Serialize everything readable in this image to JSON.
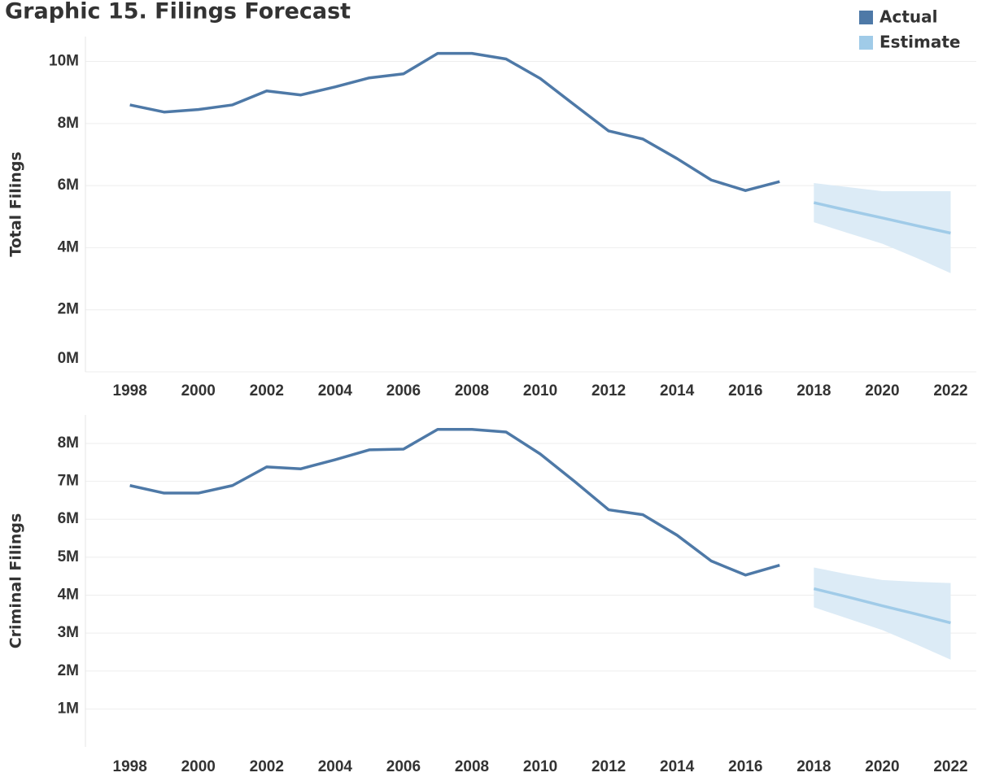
{
  "chart_data": [
    {
      "type": "line",
      "title": "Graphic 15. Filings Forecast",
      "y_label": "Total Filings",
      "xlim": [
        1996.7,
        2022.75
      ],
      "xticks": [
        1998,
        2000,
        2002,
        2004,
        2006,
        2008,
        2010,
        2012,
        2014,
        2016,
        2018,
        2020,
        2022
      ],
      "ylim": [
        0,
        10800000
      ],
      "yticks": [
        {
          "value": 0,
          "label": "0M"
        },
        {
          "value": 2000000,
          "label": "2M"
        },
        {
          "value": 4000000,
          "label": "4M"
        },
        {
          "value": 6000000,
          "label": "6M"
        },
        {
          "value": 8000000,
          "label": "8M"
        },
        {
          "value": 10000000,
          "label": "10M"
        }
      ],
      "grid": true,
      "legend": "top-right",
      "series": [
        {
          "name": "Actual",
          "color": "#4e79a7",
          "x": [
            1998,
            1999,
            2000,
            2001,
            2002,
            2003,
            2004,
            2005,
            2006,
            2007,
            2008,
            2009,
            2010,
            2011,
            2012,
            2013,
            2014,
            2015,
            2016,
            2017
          ],
          "values": [
            8600000,
            8370000,
            8450000,
            8600000,
            9050000,
            8920000,
            9180000,
            9470000,
            9600000,
            10260000,
            10260000,
            10080000,
            9450000,
            8600000,
            7760000,
            7500000,
            6870000,
            6180000,
            5840000,
            6130000
          ]
        },
        {
          "name": "Estimate",
          "color": "#a0cbe8",
          "band_color": "#dcebf6",
          "x": [
            2018,
            2019,
            2020,
            2021,
            2022
          ],
          "values": [
            5450000,
            5200000,
            4960000,
            4710000,
            4470000
          ],
          "upper": [
            6080000,
            5950000,
            5820000,
            5820000,
            5820000
          ],
          "lower": [
            4820000,
            4470000,
            4130000,
            3670000,
            3180000
          ]
        }
      ]
    },
    {
      "type": "line",
      "y_label": "Criminal Filings",
      "xlim": [
        1996.7,
        2022.75
      ],
      "xticks": [
        1998,
        2000,
        2002,
        2004,
        2006,
        2008,
        2010,
        2012,
        2014,
        2016,
        2018,
        2020,
        2022
      ],
      "ylim": [
        0,
        8750000
      ],
      "yticks": [
        {
          "value": 1000000,
          "label": "1M"
        },
        {
          "value": 2000000,
          "label": "2M"
        },
        {
          "value": 3000000,
          "label": "3M"
        },
        {
          "value": 4000000,
          "label": "4M"
        },
        {
          "value": 5000000,
          "label": "5M"
        },
        {
          "value": 6000000,
          "label": "6M"
        },
        {
          "value": 7000000,
          "label": "7M"
        },
        {
          "value": 8000000,
          "label": "8M"
        }
      ],
      "grid": true,
      "series": [
        {
          "name": "Actual",
          "color": "#4e79a7",
          "x": [
            1998,
            1999,
            2000,
            2001,
            2002,
            2003,
            2004,
            2005,
            2006,
            2007,
            2008,
            2009,
            2010,
            2011,
            2012,
            2013,
            2014,
            2015,
            2016,
            2017
          ],
          "values": [
            6890000,
            6690000,
            6690000,
            6890000,
            7380000,
            7330000,
            7570000,
            7830000,
            7850000,
            8370000,
            8370000,
            8300000,
            7720000,
            7000000,
            6250000,
            6120000,
            5580000,
            4900000,
            4530000,
            4790000
          ]
        },
        {
          "name": "Estimate",
          "color": "#a0cbe8",
          "band_color": "#dcebf6",
          "x": [
            2018,
            2019,
            2020,
            2021,
            2022
          ],
          "values": [
            4170000,
            3950000,
            3720000,
            3500000,
            3270000
          ],
          "upper": [
            4730000,
            4550000,
            4400000,
            4350000,
            4320000
          ],
          "lower": [
            3680000,
            3380000,
            3080000,
            2700000,
            2300000
          ]
        }
      ]
    }
  ]
}
